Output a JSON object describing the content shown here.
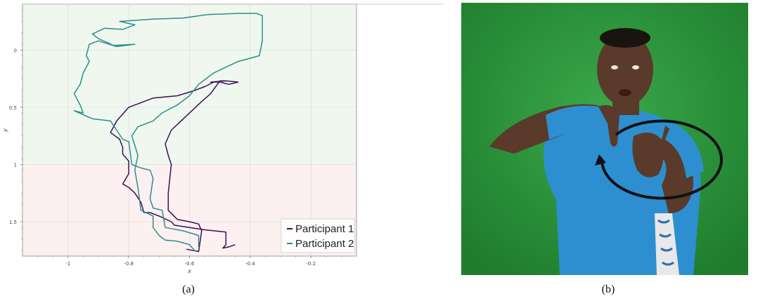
{
  "panel_a": {
    "caption": "(a)"
  },
  "panel_b": {
    "caption": "(b)",
    "colors": {
      "background": "#2c9a3c",
      "shirt": "#2d8fd0",
      "skin": "#5a3a2a",
      "arrow": "#111111"
    }
  },
  "chart_data": {
    "type": "line",
    "xlabel": "x",
    "ylabel": "y",
    "xlim": [
      -1.15,
      -0.05
    ],
    "ylim": [
      1.8,
      -0.4
    ],
    "y_inverted": true,
    "x_ticks": [
      -1,
      -0.8,
      -0.6,
      -0.4,
      -0.2
    ],
    "x_tick_labels": [
      "-1",
      "-0.8",
      "-0.6",
      "-0.4",
      "-0.2"
    ],
    "y_ticks": [
      0,
      0.5,
      1,
      1.5
    ],
    "y_tick_labels": [
      "0",
      "0.5",
      "1",
      "1.5"
    ],
    "grid": true,
    "background_bands": [
      {
        "y_from": -0.4,
        "y_to": 1.0,
        "color": "#eff7ef"
      },
      {
        "y_from": 1.0,
        "y_to": 1.8,
        "color": "#fcf0f0"
      }
    ],
    "legend_position": "bottom-right",
    "series": [
      {
        "name": "Participant 1",
        "color": "#3b0f56",
        "points": [
          [
            -0.45,
            1.7
          ],
          [
            -0.47,
            1.72
          ],
          [
            -0.49,
            1.73
          ],
          [
            -0.48,
            1.7
          ],
          [
            -0.48,
            1.59
          ],
          [
            -0.55,
            1.57
          ],
          [
            -0.6,
            1.55
          ],
          [
            -0.65,
            1.53
          ],
          [
            -0.66,
            1.5
          ],
          [
            -0.7,
            1.45
          ],
          [
            -0.73,
            1.42
          ],
          [
            -0.75,
            1.42
          ],
          [
            -0.76,
            1.33
          ],
          [
            -0.78,
            1.25
          ],
          [
            -0.8,
            1.2
          ],
          [
            -0.82,
            1.17
          ],
          [
            -0.8,
            1.08
          ],
          [
            -0.8,
            0.97
          ],
          [
            -0.82,
            0.91
          ],
          [
            -0.82,
            0.85
          ],
          [
            -0.83,
            0.78
          ],
          [
            -0.86,
            0.72
          ],
          [
            -0.84,
            0.62
          ],
          [
            -0.8,
            0.5
          ],
          [
            -0.72,
            0.42
          ],
          [
            -0.64,
            0.4
          ],
          [
            -0.59,
            0.36
          ],
          [
            -0.55,
            0.32
          ],
          [
            -0.52,
            0.28
          ],
          [
            -0.48,
            0.27
          ],
          [
            -0.44,
            0.28
          ],
          [
            -0.47,
            0.3
          ],
          [
            -0.5,
            0.28
          ],
          [
            -0.53,
            0.28
          ],
          [
            -0.48,
            0.27
          ],
          [
            -0.5,
            0.27
          ],
          [
            -0.53,
            0.38
          ],
          [
            -0.56,
            0.45
          ],
          [
            -0.58,
            0.5
          ],
          [
            -0.62,
            0.6
          ],
          [
            -0.66,
            0.7
          ],
          [
            -0.68,
            0.82
          ],
          [
            -0.67,
            0.92
          ],
          [
            -0.66,
            1.0
          ],
          [
            -0.67,
            1.25
          ],
          [
            -0.67,
            1.4
          ],
          [
            -0.64,
            1.48
          ],
          [
            -0.6,
            1.5
          ],
          [
            -0.57,
            1.52
          ],
          [
            -0.56,
            1.58
          ],
          [
            -0.57,
            1.76
          ],
          [
            -0.59,
            1.75
          ],
          [
            -0.61,
            1.74
          ]
        ]
      },
      {
        "name": "Participant 2",
        "color": "#2b8f8a",
        "points": [
          [
            -0.58,
            1.76
          ],
          [
            -0.6,
            1.7
          ],
          [
            -0.64,
            1.67
          ],
          [
            -0.68,
            1.66
          ],
          [
            -0.7,
            1.62
          ],
          [
            -0.72,
            1.55
          ],
          [
            -0.72,
            1.45
          ],
          [
            -0.76,
            1.4
          ],
          [
            -0.77,
            1.2
          ],
          [
            -0.78,
            1.05
          ],
          [
            -0.77,
            0.92
          ],
          [
            -0.79,
            0.75
          ],
          [
            -0.77,
            0.67
          ],
          [
            -0.72,
            0.62
          ],
          [
            -0.69,
            0.55
          ],
          [
            -0.64,
            0.48
          ],
          [
            -0.6,
            0.4
          ],
          [
            -0.57,
            0.3
          ],
          [
            -0.52,
            0.2
          ],
          [
            -0.44,
            0.1
          ],
          [
            -0.37,
            0.05
          ],
          [
            -0.36,
            -0.08
          ],
          [
            -0.36,
            -0.3
          ],
          [
            -0.38,
            -0.32
          ],
          [
            -0.44,
            -0.32
          ],
          [
            -0.54,
            -0.31
          ],
          [
            -0.62,
            -0.28
          ],
          [
            -0.72,
            -0.27
          ],
          [
            -0.83,
            -0.25
          ],
          [
            -0.78,
            -0.22
          ],
          [
            -0.82,
            -0.18
          ],
          [
            -0.88,
            -0.19
          ],
          [
            -0.92,
            -0.14
          ],
          [
            -0.9,
            -0.1
          ],
          [
            -0.85,
            -0.04
          ],
          [
            -0.78,
            -0.05
          ],
          [
            -0.84,
            -0.03
          ],
          [
            -0.9,
            -0.08
          ],
          [
            -0.93,
            -0.05
          ],
          [
            -0.94,
            0.05
          ],
          [
            -0.93,
            0.1
          ],
          [
            -0.95,
            0.2
          ],
          [
            -0.96,
            0.3
          ],
          [
            -0.98,
            0.38
          ],
          [
            -0.96,
            0.48
          ],
          [
            -0.95,
            0.55
          ],
          [
            -0.98,
            0.53
          ],
          [
            -0.92,
            0.6
          ],
          [
            -0.86,
            0.62
          ],
          [
            -0.84,
            0.7
          ],
          [
            -0.82,
            0.78
          ],
          [
            -0.8,
            0.8
          ],
          [
            -0.79,
            1.0
          ],
          [
            -0.76,
            1.03
          ],
          [
            -0.73,
            1.05
          ],
          [
            -0.72,
            1.12
          ],
          [
            -0.73,
            1.3
          ],
          [
            -0.72,
            1.38
          ],
          [
            -0.69,
            1.4
          ],
          [
            -0.68,
            1.55
          ],
          [
            -0.62,
            1.58
          ],
          [
            -0.57,
            1.62
          ],
          [
            -0.57,
            1.72
          ]
        ]
      }
    ]
  }
}
